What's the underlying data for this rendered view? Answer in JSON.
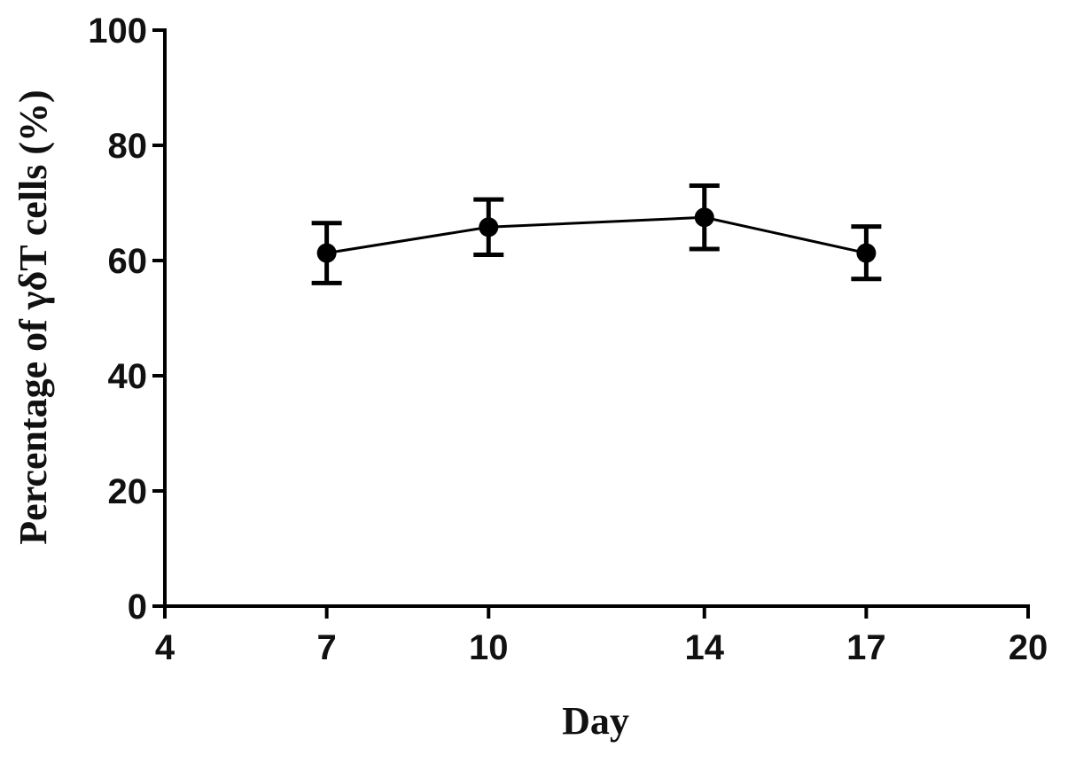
{
  "chart_data": {
    "type": "line",
    "title": "",
    "xlabel": "Day",
    "ylabel": "Percentage of γδT cells (%)",
    "xlim": [
      4,
      20
    ],
    "ylim": [
      0,
      100
    ],
    "xticks": [
      4,
      7,
      10,
      14,
      17,
      20
    ],
    "yticks": [
      0,
      20,
      40,
      60,
      80,
      100
    ],
    "grid": false,
    "legend": "none",
    "series": [
      {
        "x": [
          7,
          10,
          14,
          17
        ],
        "y": [
          61.3,
          65.8,
          67.5,
          61.3
        ],
        "err_low": [
          56.1,
          61.0,
          62.0,
          56.8
        ],
        "err_high": [
          66.5,
          70.6,
          73.0,
          65.9
        ],
        "marker": "circle",
        "color": "#000000"
      }
    ]
  }
}
